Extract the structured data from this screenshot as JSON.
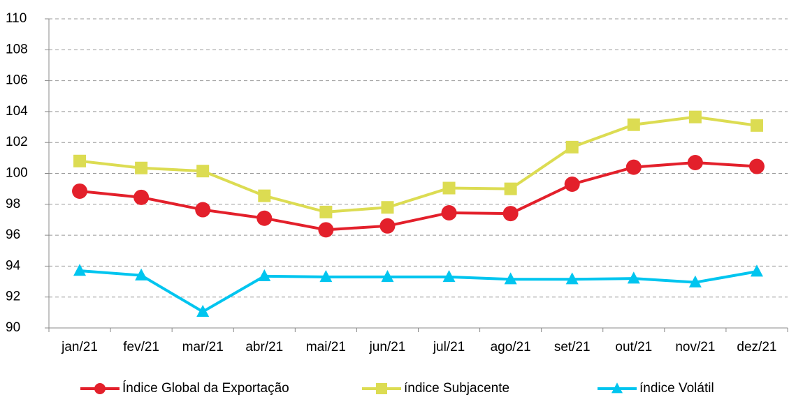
{
  "chart_data": {
    "type": "line",
    "categories": [
      "jan/21",
      "fev/21",
      "mar/21",
      "abr/21",
      "mai/21",
      "jun/21",
      "jul/21",
      "ago/21",
      "set/21",
      "out/21",
      "nov/21",
      "dez/21"
    ],
    "series": [
      {
        "name": "Índice Global da Exportação",
        "color": "#e3202b",
        "marker": "circle",
        "values": [
          98.85,
          98.45,
          97.65,
          97.1,
          96.35,
          96.6,
          97.45,
          97.4,
          99.3,
          100.4,
          100.7,
          100.45
        ]
      },
      {
        "name": "índice Subjacente",
        "color": "#dcdc52",
        "marker": "square",
        "values": [
          100.8,
          100.35,
          100.15,
          98.55,
          97.5,
          97.8,
          99.05,
          99.0,
          101.7,
          103.15,
          103.65,
          103.1
        ]
      },
      {
        "name": "índice Volátil",
        "color": "#00c5ef",
        "marker": "triangle",
        "values": [
          93.7,
          93.4,
          91.05,
          93.35,
          93.3,
          93.3,
          93.3,
          93.15,
          93.15,
          93.2,
          92.95,
          93.65
        ]
      }
    ],
    "ylim": [
      90,
      110
    ],
    "yticks": [
      90,
      92,
      94,
      96,
      98,
      100,
      102,
      104,
      106,
      108,
      110
    ],
    "grid": true,
    "legend": "bottom"
  }
}
